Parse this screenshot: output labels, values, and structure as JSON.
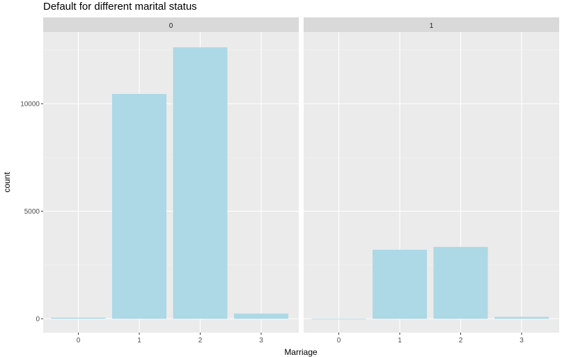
{
  "chart_data": {
    "type": "bar",
    "title": "Default for different marital status",
    "xlabel": "Marriage",
    "ylabel": "count",
    "categories": [
      "0",
      "1",
      "2",
      "3"
    ],
    "ylim": [
      0,
      13500
    ],
    "yticks": [
      0,
      5000,
      10000
    ],
    "ytick_labels": [
      "0",
      "5000",
      "10000"
    ],
    "grid": true,
    "bar_color": "#ADD8E6",
    "panel_background": "#EBEBEB",
    "strip_background": "#D9D9D9",
    "facets": [
      {
        "label": "0",
        "values": [
          49,
          10453,
          12623,
          239
        ]
      },
      {
        "label": "1",
        "values": [
          5,
          3206,
          3341,
          84
        ]
      }
    ]
  }
}
